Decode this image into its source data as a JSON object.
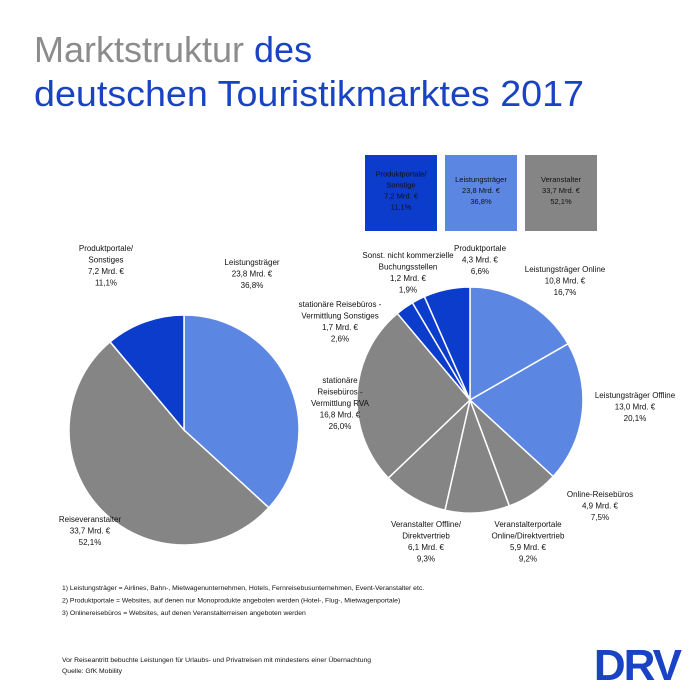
{
  "header": {
    "title_gray": "Marktstruktur",
    "title_blue_1": "des",
    "title_blue_2": "deutschen Touristikmarktes 2017"
  },
  "legend": [
    {
      "lines": [
        "Produktportale/",
        "Sonstige",
        "7,2 Mrd. €",
        "11,1%"
      ],
      "color": "#0b3ccc"
    },
    {
      "lines": [
        "Leistungsträger",
        "23,8 Mrd. €",
        "36,8%"
      ],
      "color": "#5b87e3"
    },
    {
      "lines": [
        "Veranstalter",
        "33,7 Mrd. €",
        "52,1%"
      ],
      "color": "#858585"
    }
  ],
  "chart_data": [
    {
      "type": "pie",
      "labels": [
        [
          "Leistungsträger"
        ],
        [
          "Reiseveranstalter"
        ],
        [
          "Produktportale/",
          "Sonstiges"
        ]
      ],
      "values": [
        36.8,
        52.1,
        11.1
      ],
      "value_labels": [
        "36,8%",
        "52,1%",
        "11,1%"
      ],
      "amounts": [
        23.8,
        33.7,
        7.2
      ],
      "amount_labels": [
        "23,8 Mrd. €",
        "33,7 Mrd. €",
        "7,2 Mrd. €"
      ],
      "colors": [
        "#5b87e3",
        "#858585",
        "#0b3ccc"
      ]
    },
    {
      "type": "pie",
      "labels": [
        [
          "Leistungsträger Online"
        ],
        [
          "Leistungsträger Offline"
        ],
        [
          "Online-Reisebüros"
        ],
        [
          "Veranstalterportale",
          "Online/Direktvertrieb"
        ],
        [
          "Veranstalter Offline/",
          "Direktvertrieb"
        ],
        [
          "stationäre",
          "Reisebüros -",
          "Vermittlung RVA"
        ],
        [
          "stationäre Reisebüros -",
          "Vermittlung Sonstiges"
        ],
        [
          "Sonst. nicht kommerzielle",
          "Buchungsstellen"
        ],
        [
          "Produktportale"
        ]
      ],
      "values": [
        16.7,
        20.1,
        7.5,
        9.2,
        9.3,
        26.0,
        2.6,
        1.9,
        6.6
      ],
      "value_labels": [
        "16,7%",
        "20,1%",
        "7,5%",
        "9,2%",
        "9,3%",
        "26,0%",
        "2,6%",
        "1,9%",
        "6,6%"
      ],
      "amounts": [
        10.8,
        13.0,
        4.9,
        5.9,
        6.1,
        16.8,
        1.7,
        1.2,
        4.3
      ],
      "amount_labels": [
        "10,8 Mrd. €",
        "13,0 Mrd. €",
        "4,9 Mrd. €",
        "5,9 Mrd. €",
        "6,1 Mrd. €",
        "16,8 Mrd. €",
        "1,7 Mrd. €",
        "1,2 Mrd. €",
        "4,3 Mrd. €"
      ],
      "colors": [
        "#5b87e3",
        "#5b87e3",
        "#858585",
        "#858585",
        "#858585",
        "#858585",
        "#0b3ccc",
        "#0b3ccc",
        "#0b3ccc"
      ]
    }
  ],
  "footnotes": [
    "1) Leistungsträger = Airlines, Bahn-, Mietwagenunternehmen, Hotels, Fernreisebusunternehmen, Event-Veranstalter etc.",
    "2) Produktportale = Websites, auf denen nur Monoprodukte angeboten werden (Hotel-, Flug-, Mietwagenportale)",
    "3) Onlinereisebüros = Websites, auf denen Veranstalterreisen angeboten werden"
  ],
  "source": [
    "Vor Reiseantritt bebuchte Leistungen für Urlaubs- und Privatreisen mit mindestens einer Übernachtung",
    "Quelle: GfK Mobility"
  ],
  "logo": "DRV"
}
